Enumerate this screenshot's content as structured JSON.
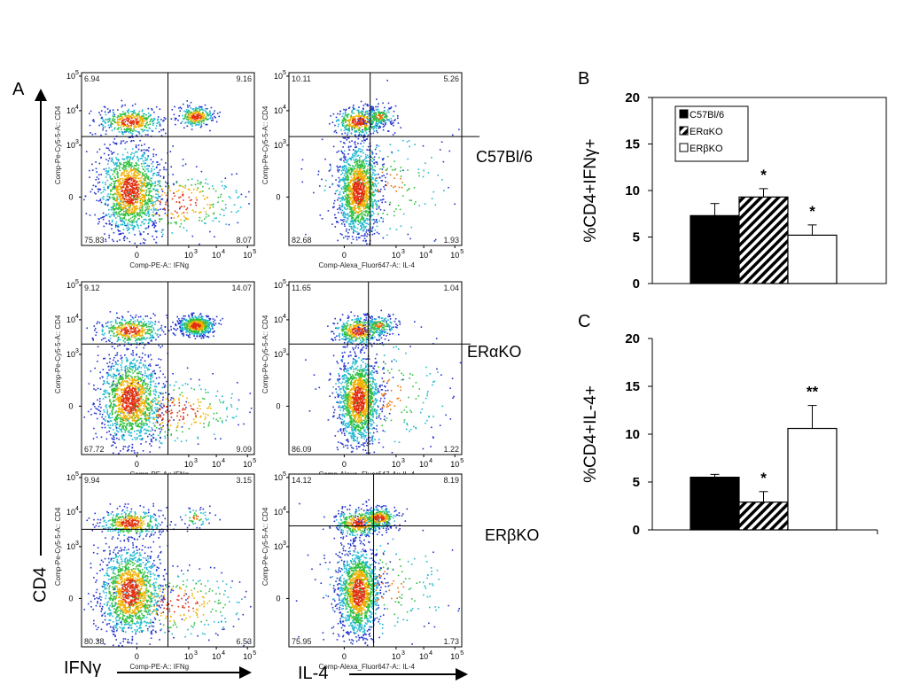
{
  "panel_labels": {
    "a": "A",
    "b": "B",
    "c": "C"
  },
  "left_axis": {
    "y_label": "CD4",
    "x1_label": "IFNγ",
    "x2_label": "IL-4"
  },
  "strain_labels": [
    "C57Bl/6",
    "ERαKO",
    "ERβKO"
  ],
  "flow_plots": [
    {
      "strain": "C57Bl/6",
      "type": "IFNg",
      "ylabel": "Comp-Pe-Cy5-5-A:: CD4",
      "xlabel": "Comp-PE-A:: IFNg",
      "q": [
        "6.94",
        "9.16",
        "75.83",
        "8.07"
      ]
    },
    {
      "strain": "C57Bl/6",
      "type": "IL4",
      "ylabel": "Comp-Pe-Cy5-5-A:: CD4",
      "xlabel": "Comp-Alexa_Fluor647-A:: IL-4",
      "q": [
        "10.11",
        "5.26",
        "82.68",
        "1.93"
      ]
    },
    {
      "strain": "ERαKO",
      "type": "IFNg",
      "ylabel": "Comp-Pe-Cy5-5-A:: CD4",
      "xlabel": "Comp-PE-A:: IFNg",
      "q": [
        "9.12",
        "14.07",
        "67.72",
        "9.09"
      ]
    },
    {
      "strain": "ERαKO",
      "type": "IL4",
      "ylabel": "Comp-Pe-Cy5-5-A:: CD4",
      "xlabel": "Comp-Alexa_Fluor647-A:: IL-4",
      "q": [
        "11.65",
        "1.04",
        "86.09",
        "1.22"
      ]
    },
    {
      "strain": "ERβKO",
      "type": "IFNg",
      "ylabel": "Comp-Pe-Cy5-5-A:: CD4",
      "xlabel": "Comp-PE-A:: IFNg",
      "q": [
        "9.94",
        "3.15",
        "80.38",
        "6.53"
      ]
    },
    {
      "strain": "ERβKO",
      "type": "IL4",
      "ylabel": "Comp-Pe-Cy5-5-A:: CD4",
      "xlabel": "Comp-Alexa_Fluor647-A:: IL-4",
      "q": [
        "14.12",
        "8.19",
        "75.95",
        "1.73"
      ]
    }
  ],
  "flow_ticks": {
    "x": [
      "0",
      "10",
      "10",
      "10"
    ],
    "x_exp": [
      "",
      "3",
      "4",
      "5"
    ],
    "y": [
      "10",
      "10",
      "10",
      "0"
    ],
    "y_exp": [
      "5",
      "4",
      "3",
      ""
    ]
  },
  "chart_data": [
    {
      "type": "bar",
      "panel": "B",
      "ylabel": "%CD4+IFNγ+",
      "categories": [
        "C57Bl/6",
        "ERαKO",
        "ERβKO"
      ],
      "values": [
        7.3,
        9.3,
        5.2
      ],
      "errors": [
        1.3,
        0.9,
        1.1
      ],
      "annotations": [
        "",
        "*",
        "*"
      ],
      "ylim": [
        0,
        20
      ],
      "yticks": [
        "0",
        "5",
        "10",
        "15",
        "20"
      ],
      "legend": [
        "C57Bl/6",
        "ERαKO",
        "ERβKO"
      ],
      "legend_position": "top-left"
    },
    {
      "type": "bar",
      "panel": "C",
      "ylabel": "%CD4+IL-4+",
      "categories": [
        "C57Bl/6",
        "ERαKO",
        "ERβKO"
      ],
      "values": [
        5.5,
        2.9,
        10.6
      ],
      "errors": [
        0.3,
        1.1,
        2.4
      ],
      "annotations": [
        "",
        "*",
        "**"
      ],
      "ylim": [
        0,
        20
      ],
      "yticks": [
        "0",
        "5",
        "10",
        "15",
        "20"
      ]
    }
  ]
}
